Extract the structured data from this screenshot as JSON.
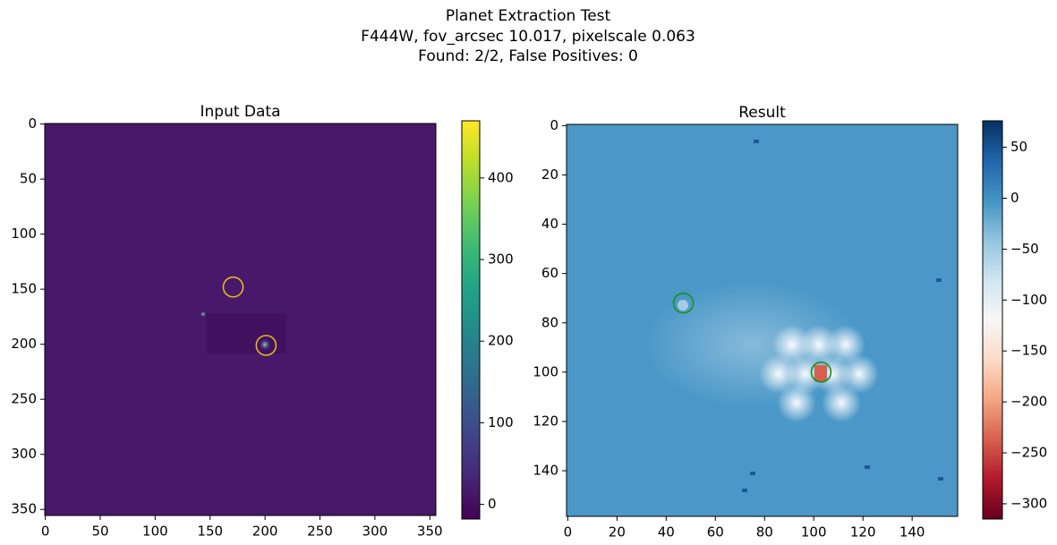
{
  "figure_title": [
    "Planet Extraction Test",
    "F444W, fov_arcsec 10.017, pixelscale 0.063",
    "Found: 2/2, False Positives: 0"
  ],
  "chart_data": [
    {
      "type": "image",
      "title": "Input Data",
      "background": "#48186a",
      "xlim": [
        -0.5,
        355.5
      ],
      "ylim": [
        355.5,
        -0.5
      ],
      "xticks": [
        0,
        50,
        100,
        150,
        200,
        250,
        300,
        350
      ],
      "yticks": [
        0,
        50,
        100,
        150,
        200,
        250,
        300,
        350
      ],
      "colormap": [
        "#440154",
        "#482878",
        "#3e4989",
        "#31688e",
        "#26828e",
        "#1f9e89",
        "#35b779",
        "#6ece58",
        "#b5de2b",
        "#fde725"
      ],
      "clim": [
        -18,
        470
      ],
      "cticks": [
        0,
        100,
        200,
        300,
        400
      ],
      "markers": {
        "x": [
          171,
          201
        ],
        "y": [
          148,
          201
        ],
        "radius": 9,
        "color": "#e3b81f"
      }
    },
    {
      "type": "image",
      "title": "Result",
      "background": "#4b98c8",
      "xlim": [
        -0.5,
        158.5
      ],
      "ylim": [
        158.5,
        -0.5
      ],
      "xticks": [
        0,
        20,
        40,
        60,
        80,
        100,
        120,
        140
      ],
      "yticks": [
        0,
        20,
        40,
        60,
        80,
        100,
        120,
        140
      ],
      "colormap": [
        "#67001f",
        "#b2182b",
        "#d6604d",
        "#f4a582",
        "#fddbc7",
        "#f7f7f7",
        "#d1e5f0",
        "#92c5de",
        "#4393c3",
        "#2166ac",
        "#053061"
      ],
      "clim": [
        -315,
        76
      ],
      "cticks": [
        50,
        0,
        {
          "value": -50,
          "label": "−50"
        },
        {
          "value": -100,
          "label": "−100"
        },
        {
          "value": -150,
          "label": "−150"
        },
        {
          "value": -200,
          "label": "−200"
        },
        {
          "value": -250,
          "label": "−250"
        },
        {
          "value": -300,
          "label": "−300"
        }
      ],
      "markers": {
        "x": [
          47,
          103
        ],
        "y": [
          72,
          100
        ],
        "radius": 4,
        "color": "#1a8f1a"
      }
    }
  ]
}
